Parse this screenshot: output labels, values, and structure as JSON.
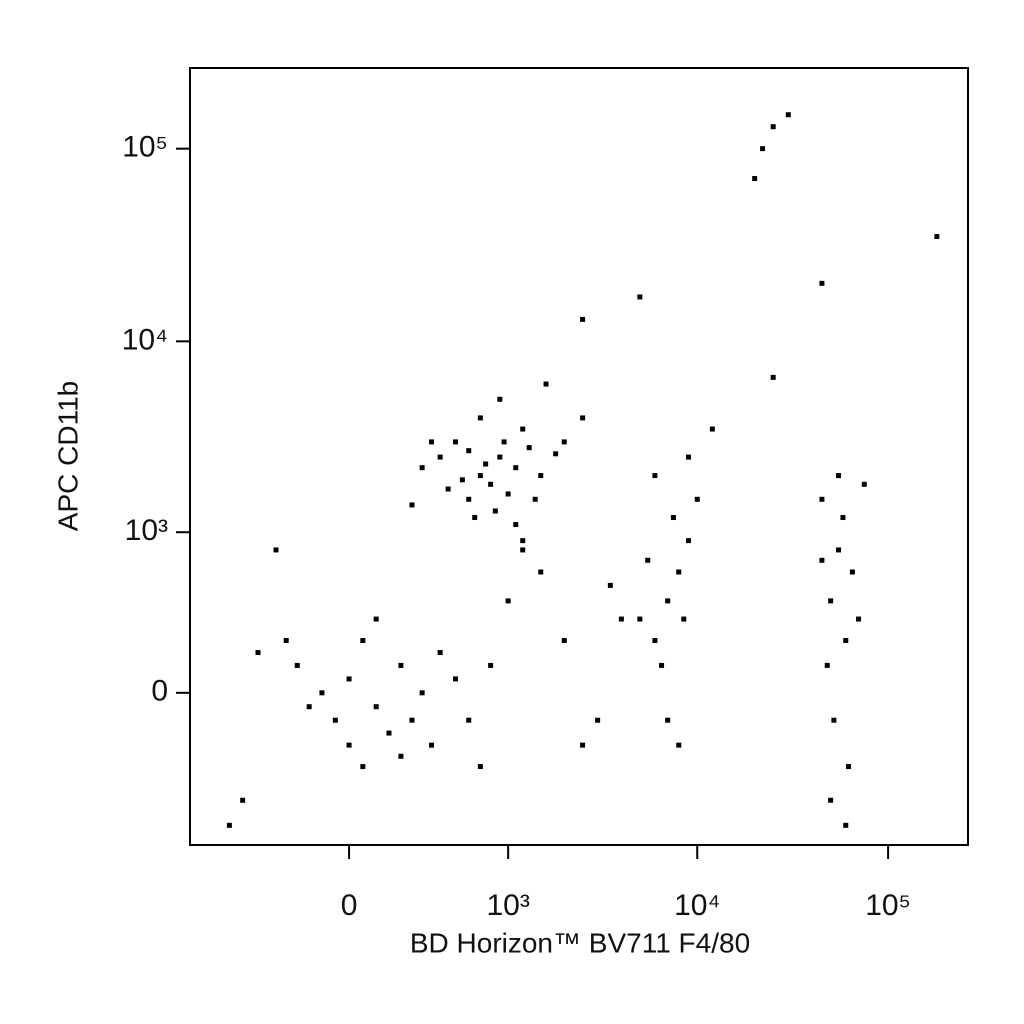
{
  "chart_data": {
    "type": "scatter",
    "x_label": "BD Horizon™ BV711 F4/80",
    "y_label": "APC CD11b",
    "scale": "biexponential",
    "color": "#000000",
    "xlim": [
      -1000,
      262144
    ],
    "ylim": [
      -900,
      262144
    ],
    "xticks": [
      0,
      {
        "value": 1000,
        "label": "10³"
      },
      {
        "value": 10000,
        "label": "10⁴"
      },
      {
        "value": 100000,
        "label": "10⁵"
      }
    ],
    "yticks": [
      0,
      {
        "value": 1000,
        "label": "10³"
      },
      {
        "value": 10000,
        "label": "10⁴"
      },
      {
        "value": 100000,
        "label": "10⁵"
      }
    ],
    "x": [
      700,
      900,
      600,
      1100,
      800,
      500,
      1300,
      650,
      1000,
      750,
      1200,
      400,
      550,
      950,
      1500,
      850,
      300,
      1800,
      700,
      1100,
      2000,
      600,
      450,
      1400,
      250,
      900,
      2500,
      1600,
      350,
      1200,
      -100,
      0,
      100,
      200,
      -50,
      50,
      150,
      300,
      -200,
      250,
      0,
      400,
      100,
      -150,
      350,
      50,
      500,
      200,
      -250,
      600,
      1000,
      2000,
      3000,
      1500,
      800,
      4000,
      2500,
      700,
      1200,
      3500,
      7000,
      8000,
      6000,
      9000,
      5000,
      7500,
      6500,
      8500,
      5500,
      10000,
      7000,
      6000,
      9000,
      12000,
      8000,
      50000,
      55000,
      60000,
      45000,
      65000,
      52000,
      58000,
      48000,
      70000,
      62000,
      55000,
      50000,
      75000,
      45000,
      60000,
      20000,
      22000,
      25000,
      30000,
      180000,
      45000,
      5000,
      2500,
      25000,
      -500,
      -600,
      -400,
      -300
    ],
    "values": [
      2000,
      2500,
      1500,
      2200,
      1800,
      3000,
      2800,
      1200,
      1600,
      2300,
      3500,
      2500,
      1900,
      3000,
      2000,
      1300,
      2200,
      2600,
      4000,
      1100,
      3000,
      2700,
      1700,
      1500,
      1400,
      5000,
      4000,
      6000,
      3000,
      900,
      0,
      50,
      -50,
      100,
      -100,
      200,
      -150,
      0,
      100,
      -100,
      -200,
      150,
      300,
      -50,
      -200,
      -300,
      50,
      -250,
      200,
      -100,
      400,
      200,
      -100,
      600,
      100,
      300,
      -200,
      -300,
      800,
      500,
      400,
      600,
      200,
      900,
      300,
      1200,
      100,
      300,
      700,
      1500,
      -100,
      2000,
      2500,
      3500,
      -200,
      400,
      800,
      200,
      1500,
      600,
      -100,
      1200,
      100,
      300,
      -300,
      2000,
      -500,
      1800,
      700,
      -700,
      70000,
      100000,
      130000,
      150000,
      35000,
      20000,
      17000,
      13000,
      6500,
      -500,
      -700,
      150,
      800
    ]
  }
}
